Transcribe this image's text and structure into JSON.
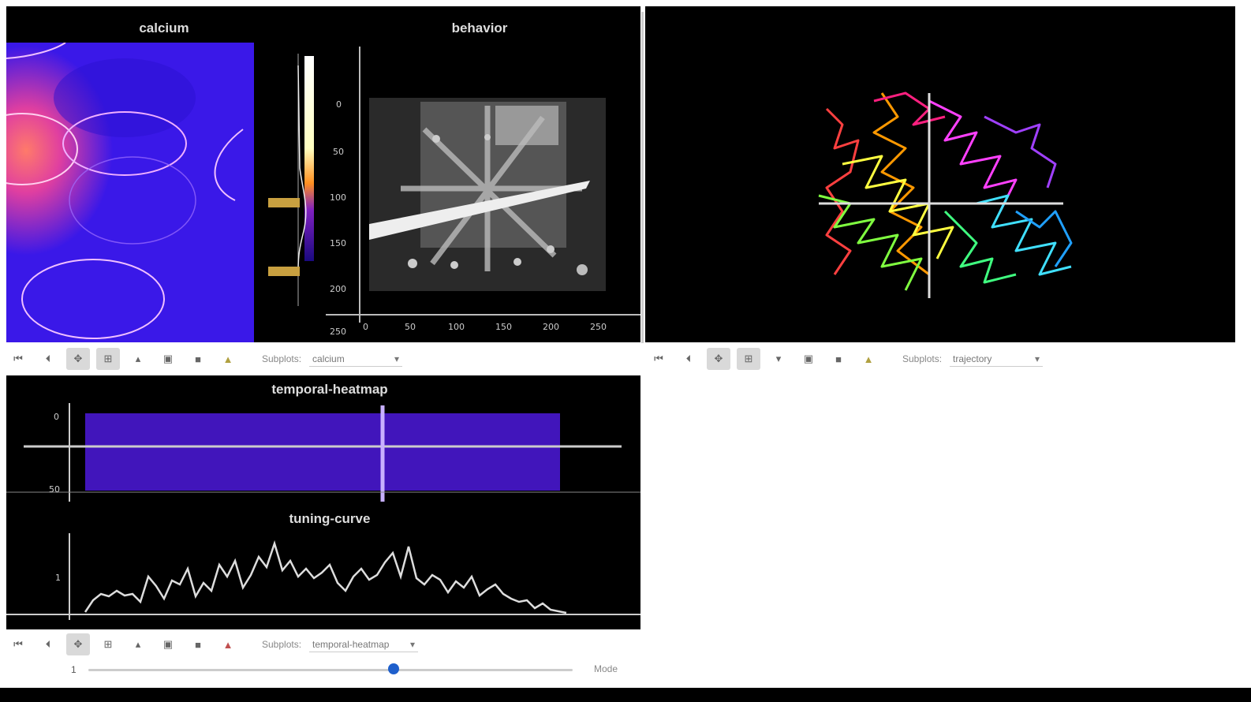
{
  "panels": {
    "calcium_title": "calcium",
    "behavior_title": "behavior",
    "heatmap_title": "temporal-heatmap",
    "tuning_title": "tuning-curve"
  },
  "behavior_axis": {
    "y_ticks": [
      "0",
      "50",
      "100",
      "150",
      "200",
      "250"
    ],
    "x_ticks": [
      "0",
      "50",
      "100",
      "150",
      "200",
      "250"
    ]
  },
  "heatmap_axis": {
    "y_ticks": [
      "0",
      "50"
    ]
  },
  "tuning_axis": {
    "y_ticks": [
      "1"
    ]
  },
  "toolbars": {
    "top_left": {
      "label": "Subplots:",
      "value": "calcium"
    },
    "top_right": {
      "label": "Subplots:",
      "value": "trajectory"
    },
    "bottom": {
      "label": "Subplots:",
      "value": "temporal-heatmap"
    }
  },
  "slider": {
    "start": "1",
    "mode_label": "Mode",
    "position": 0.63
  },
  "colors": {
    "calcium_bg": "#2a14e8",
    "accent": "#1e5fcc"
  }
}
